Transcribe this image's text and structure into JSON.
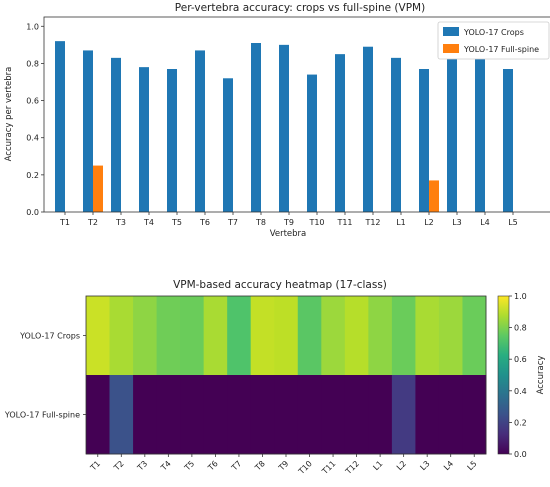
{
  "chart_data": [
    {
      "type": "bar",
      "title": "Per-vertebra accuracy: crops vs full-spine (VPM)",
      "xlabel": "Vertebra",
      "ylabel": "Accuracy per vertebra",
      "ylim": [
        0,
        1.05
      ],
      "yticks": [
        "0.0",
        "0.2",
        "0.4",
        "0.6",
        "0.8",
        "1.0"
      ],
      "legend_position": "top-right",
      "categories": [
        "T1",
        "T2",
        "T3",
        "T4",
        "T5",
        "T6",
        "T7",
        "T8",
        "T9",
        "T10",
        "T11",
        "T12",
        "L1",
        "L2",
        "L3",
        "L4",
        "L5"
      ],
      "series": [
        {
          "name": "YOLO-17 Crops",
          "color": "#1f77b4",
          "values": [
            0.92,
            0.87,
            0.83,
            0.78,
            0.77,
            0.87,
            0.72,
            0.91,
            0.9,
            0.74,
            0.85,
            0.89,
            0.83,
            0.77,
            0.87,
            0.85,
            0.77
          ]
        },
        {
          "name": "YOLO-17 Full-spine",
          "color": "#ff7f0e",
          "values": [
            0,
            0.25,
            0,
            0,
            0,
            0,
            0,
            0,
            0,
            0,
            0,
            0,
            0,
            0.17,
            0,
            0,
            0
          ]
        }
      ]
    },
    {
      "type": "heatmap",
      "title": "VPM-based accuracy heatmap (17-class)",
      "colormap": "viridis",
      "rows": [
        "YOLO-17 Crops",
        "YOLO-17 Full-spine"
      ],
      "columns": [
        "T1",
        "T2",
        "T3",
        "T4",
        "T5",
        "T6",
        "T7",
        "T8",
        "T9",
        "T10",
        "T11",
        "T12",
        "L1",
        "L2",
        "L3",
        "L4",
        "L5"
      ],
      "values": [
        [
          0.92,
          0.87,
          0.83,
          0.78,
          0.77,
          0.87,
          0.72,
          0.91,
          0.9,
          0.74,
          0.85,
          0.89,
          0.83,
          0.77,
          0.87,
          0.85,
          0.77
        ],
        [
          0,
          0.25,
          0,
          0,
          0,
          0,
          0,
          0,
          0,
          0,
          0,
          0,
          0,
          0.17,
          0,
          0,
          0
        ]
      ],
      "colorbar_label": "Accuracy",
      "colorbar_ticks": [
        "0.0",
        "0.2",
        "0.4",
        "0.6",
        "0.8",
        "1.0"
      ],
      "vmin": 0,
      "vmax": 1
    }
  ]
}
